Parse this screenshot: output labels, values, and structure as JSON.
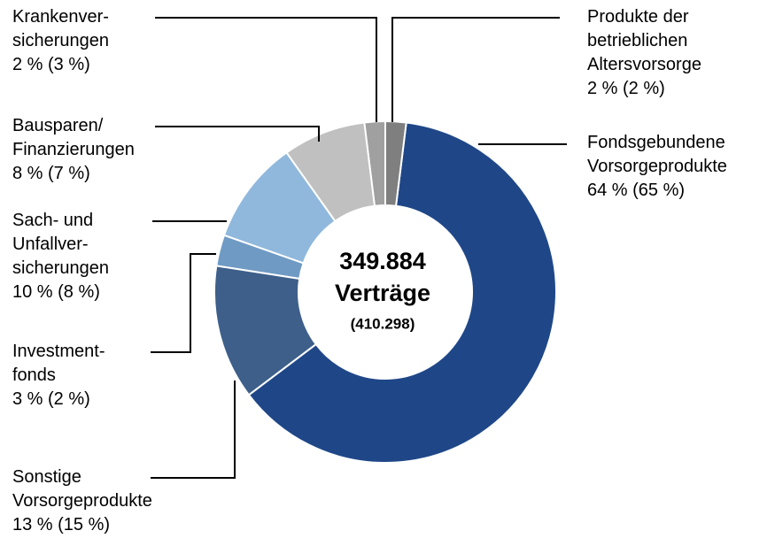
{
  "chart_data": {
    "type": "donut",
    "categories": [
      "Produkte der\nbetrieblichen\nAltersvorsorge",
      "Fondsgebundene\nVorsorgeprodukte",
      "Sonstige\nVorsorgeprodukte",
      "Investment-\nfonds",
      "Sach- und\nUnfallver-\nsicherungen",
      "Bausparen/\nFinanzierungen",
      "Krankenver-\nsicherungen"
    ],
    "values": [
      2,
      64,
      13,
      3,
      10,
      8,
      2
    ],
    "value_labels": [
      "2 % (2 %)",
      "64 % (65 %)",
      "13 % (15 %)",
      "3 % (2 %)",
      "10 % (8 %)",
      "8 % (7 %)",
      "2 % (3 %)"
    ],
    "colors": [
      "#7f7f7f",
      "#1f4788",
      "#3d5f8a",
      "#6f9ac4",
      "#8fb8dc",
      "#c0c0c0",
      "#a0a0a0"
    ],
    "center_label": {
      "total": "349.884",
      "unit": "Verträge",
      "previous": "(410.298)"
    }
  }
}
